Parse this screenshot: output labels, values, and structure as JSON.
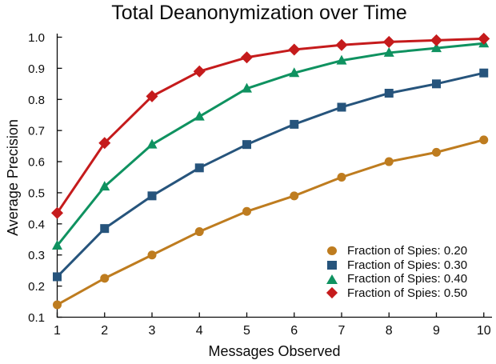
{
  "figure": {
    "background_color": "#ffffff",
    "text_color": "#0b0b0b"
  },
  "chart_data": {
    "type": "line",
    "title": "Total Deanonymization over Time",
    "xlabel": "Messages Observed",
    "ylabel": "Average Precision",
    "xlim": [
      1,
      10.2
    ],
    "ylim": [
      0.1,
      1.02
    ],
    "xticks": [
      1,
      2,
      3,
      4,
      5,
      6,
      7,
      8,
      9,
      10
    ],
    "yticks": [
      0.1,
      0.2,
      0.3,
      0.4,
      0.5,
      0.6,
      0.7,
      0.8,
      0.9,
      1.0
    ],
    "ytick_labels": [
      "0.1",
      "0.2",
      "0.3",
      "0.4",
      "0.5",
      "0.6",
      "0.7",
      "0.8",
      "0.9",
      "1.0"
    ],
    "grid": false,
    "legend_position": "lower-right",
    "legend_frame": false,
    "x": [
      1,
      2,
      3,
      4,
      5,
      6,
      7,
      8,
      9,
      10
    ],
    "series": [
      {
        "name": "Fraction of Spies: 0.20",
        "color": "#BE7C1F",
        "marker": "circle",
        "values": [
          0.14,
          0.225,
          0.3,
          0.375,
          0.44,
          0.49,
          0.55,
          0.6,
          0.63,
          0.67
        ]
      },
      {
        "name": "Fraction of Spies: 0.30",
        "color": "#26547C",
        "marker": "square",
        "values": [
          0.23,
          0.385,
          0.49,
          0.58,
          0.655,
          0.72,
          0.775,
          0.82,
          0.85,
          0.885
        ]
      },
      {
        "name": "Fraction of Spies: 0.40",
        "color": "#0F9260",
        "marker": "triangle",
        "values": [
          0.33,
          0.52,
          0.655,
          0.745,
          0.835,
          0.885,
          0.925,
          0.95,
          0.965,
          0.98
        ]
      },
      {
        "name": "Fraction of Spies: 0.50",
        "color": "#C51B1C",
        "marker": "diamond",
        "values": [
          0.435,
          0.66,
          0.81,
          0.89,
          0.935,
          0.96,
          0.975,
          0.985,
          0.99,
          0.995
        ]
      }
    ]
  }
}
